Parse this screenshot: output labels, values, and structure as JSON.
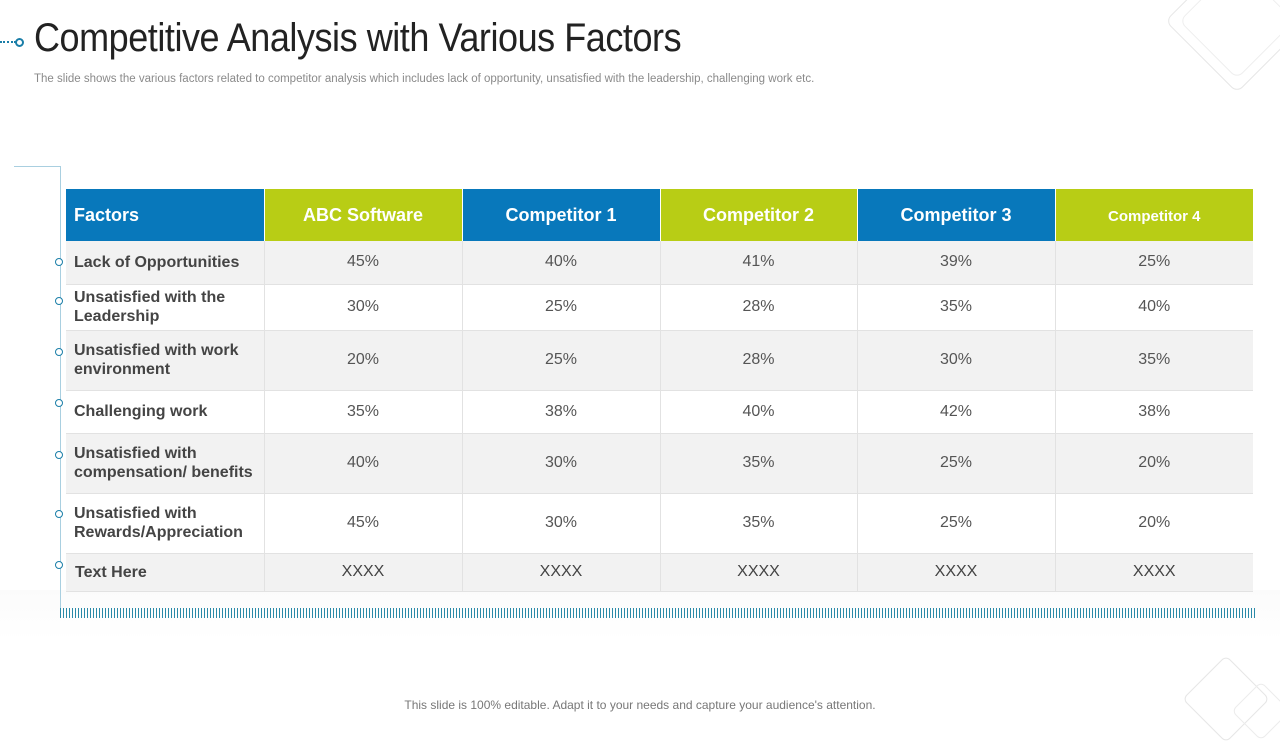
{
  "slide": {
    "title": "Competitive Analysis with Various Factors",
    "subtitle": "The slide shows the various factors related to competitor analysis which includes lack of opportunity, unsatisfied with the leadership, challenging work etc.",
    "footer": "This slide is 100% editable. Adapt it to your needs and capture your audience's attention."
  },
  "colors": {
    "header_blue": "#0878bb",
    "header_green": "#b8cd15",
    "accent_teal": "#1a7ea8"
  },
  "table": {
    "headers": [
      "Factors",
      "ABC Software",
      "Competitor 1",
      "Competitor 2",
      "Competitor 3",
      "Competitor 4"
    ],
    "rows": [
      {
        "factor": "Lack of Opportunities",
        "values": [
          "45%",
          "40%",
          "41%",
          "39%",
          "25%"
        ]
      },
      {
        "factor": "Unsatisfied with the Leadership",
        "values": [
          "30%",
          "25%",
          "28%",
          "35%",
          "40%"
        ]
      },
      {
        "factor": "Unsatisfied with work environment",
        "values": [
          "20%",
          "25%",
          "28%",
          "30%",
          "35%"
        ]
      },
      {
        "factor": "Challenging work",
        "values": [
          "35%",
          "38%",
          "40%",
          "42%",
          "38%"
        ]
      },
      {
        "factor": "Unsatisfied with compensation/ benefits",
        "values": [
          "40%",
          "30%",
          "35%",
          "25%",
          "20%"
        ]
      },
      {
        "factor": "Unsatisfied with Rewards/Appreciation",
        "values": [
          "45%",
          "30%",
          "35%",
          "25%",
          "20%"
        ]
      },
      {
        "factor": "Text Here",
        "values": [
          "XXXX",
          "XXXX",
          "XXXX",
          "XXXX",
          "XXXX"
        ]
      }
    ]
  }
}
